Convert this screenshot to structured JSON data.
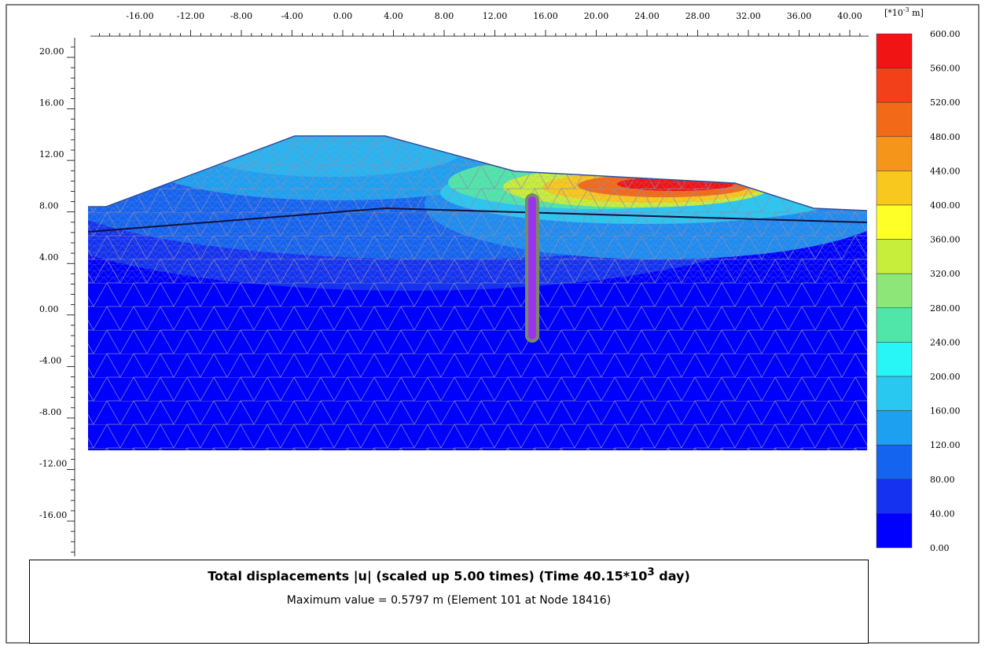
{
  "x_axis": {
    "labels": [
      "-16.00",
      "-12.00",
      "-8.00",
      "-4.00",
      "0.00",
      "4.00",
      "8.00",
      "12.00",
      "16.00",
      "20.00",
      "24.00",
      "28.00",
      "32.00",
      "36.00",
      "40.00"
    ]
  },
  "y_axis": {
    "labels": [
      "20.00",
      "16.00",
      "12.00",
      "8.00",
      "4.00",
      "0.00",
      "-4.00",
      "-8.00",
      "-12.00",
      "-16.00"
    ]
  },
  "legend": {
    "unit": [
      "[*10",
      "-3",
      " m]"
    ],
    "labels": [
      "600.00",
      "560.00",
      "520.00",
      "480.00",
      "440.00",
      "400.00",
      "360.00",
      "320.00",
      "280.00",
      "240.00",
      "200.00",
      "160.00",
      "120.00",
      "80.00",
      "40.00",
      "0.00"
    ],
    "colors": [
      "#f01414",
      "#f2401a",
      "#f26a18",
      "#f5961a",
      "#f8c81e",
      "#ffff28",
      "#c8ee3c",
      "#8ce678",
      "#50e6aa",
      "#28f5f5",
      "#28c8f0",
      "#1ea0f0",
      "#1464f0",
      "#1432f0",
      "#0000ff"
    ]
  },
  "caption": {
    "title": [
      "Total displacements |u| (scaled up 5.00 times) (Time 40.15*10",
      "3",
      " day)"
    ],
    "subtitle": "Maximum value = 0.5797 m (Element 101 at Node 18416)"
  }
}
